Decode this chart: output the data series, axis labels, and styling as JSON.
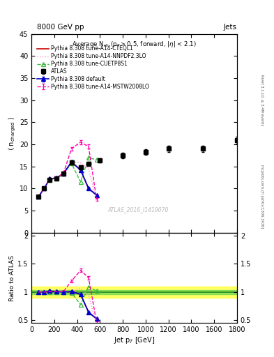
{
  "title_top": "8000 GeV pp",
  "title_right": "Jets",
  "ylabel_main": "⟨ n$_{\\rm charged}$ ⟩",
  "ylabel_ratio": "Ratio to ATLAS",
  "xlabel": "Jet p$_{T}$ [GeV]",
  "annotation": "Average N$_{\\rm ch}$ (p$_{\\rm T}$$>$0.5, forward, |$\\eta$| < 2.1)",
  "watermark": "ATLAS_2016_I1419070",
  "right_label1": "Rivet 3.1.10, ≥ 3.4M events",
  "right_label2": "mcplots.cern.ch [arXiv:1306.3436]",
  "atlas_x": [
    60,
    110,
    160,
    220,
    280,
    350,
    430,
    500,
    600,
    800,
    1000,
    1200,
    1500,
    1800
  ],
  "atlas_y": [
    8.1,
    10.0,
    12.0,
    12.3,
    13.4,
    15.9,
    14.8,
    15.6,
    16.4,
    17.5,
    18.3,
    19.0,
    19.0,
    21.0
  ],
  "atlas_yerr": [
    0.3,
    0.3,
    0.4,
    0.4,
    0.4,
    0.5,
    0.5,
    0.5,
    0.5,
    0.6,
    0.6,
    0.7,
    0.7,
    0.8
  ],
  "default_x": [
    60,
    110,
    160,
    220,
    280,
    350,
    430,
    500,
    570
  ],
  "default_y": [
    8.1,
    10.0,
    12.2,
    12.4,
    13.4,
    16.0,
    14.2,
    10.0,
    8.5
  ],
  "default_yerr": [
    0.1,
    0.15,
    0.2,
    0.2,
    0.25,
    0.3,
    0.25,
    0.2,
    0.2
  ],
  "default_color": "#0000cc",
  "cteql1_x": [
    60,
    110,
    160,
    220,
    280,
    350,
    430,
    500,
    570
  ],
  "cteql1_y": [
    8.1,
    10.0,
    12.2,
    12.4,
    13.4,
    16.0,
    14.2,
    10.0,
    8.5
  ],
  "cteql1_color": "#cc0000",
  "mstw_x": [
    60,
    110,
    160,
    220,
    280,
    350,
    430,
    500,
    570
  ],
  "mstw_y": [
    8.1,
    10.0,
    12.1,
    12.4,
    13.5,
    19.0,
    20.5,
    19.5,
    7.5
  ],
  "mstw_yerr": [
    0.1,
    0.1,
    0.15,
    0.2,
    0.2,
    0.4,
    0.5,
    0.5,
    0.3
  ],
  "mstw_color": "#ff00aa",
  "nnpdf_x": [
    60,
    110,
    160,
    220,
    280,
    350,
    430,
    500,
    570
  ],
  "nnpdf_y": [
    8.1,
    10.0,
    12.1,
    12.3,
    13.4,
    16.0,
    15.8,
    14.5,
    7.0
  ],
  "nnpdf_color": "#ff88cc",
  "cuetp_x": [
    60,
    110,
    160,
    220,
    280,
    350,
    430,
    500,
    570
  ],
  "cuetp_y": [
    8.1,
    10.0,
    12.0,
    12.3,
    13.3,
    15.7,
    11.5,
    17.0,
    16.5
  ],
  "cuetp_color": "#44bb44",
  "ylim_main": [
    0,
    45
  ],
  "yticks_main": [
    0,
    5,
    10,
    15,
    20,
    25,
    30,
    35,
    40,
    45
  ],
  "ylim_ratio": [
    0.45,
    2.05
  ],
  "yticks_ratio": [
    0.5,
    1.0,
    1.5,
    2.0
  ],
  "yticks_ratio_labels": [
    "0.5",
    "1",
    "1.5",
    "2"
  ],
  "xlim": [
    0,
    1800
  ],
  "xticks": [
    0,
    200,
    400,
    600,
    800,
    1000,
    1200,
    1400,
    1600,
    1800
  ],
  "band_yellow": [
    0.9,
    1.1
  ],
  "band_green": [
    0.96,
    1.04
  ]
}
